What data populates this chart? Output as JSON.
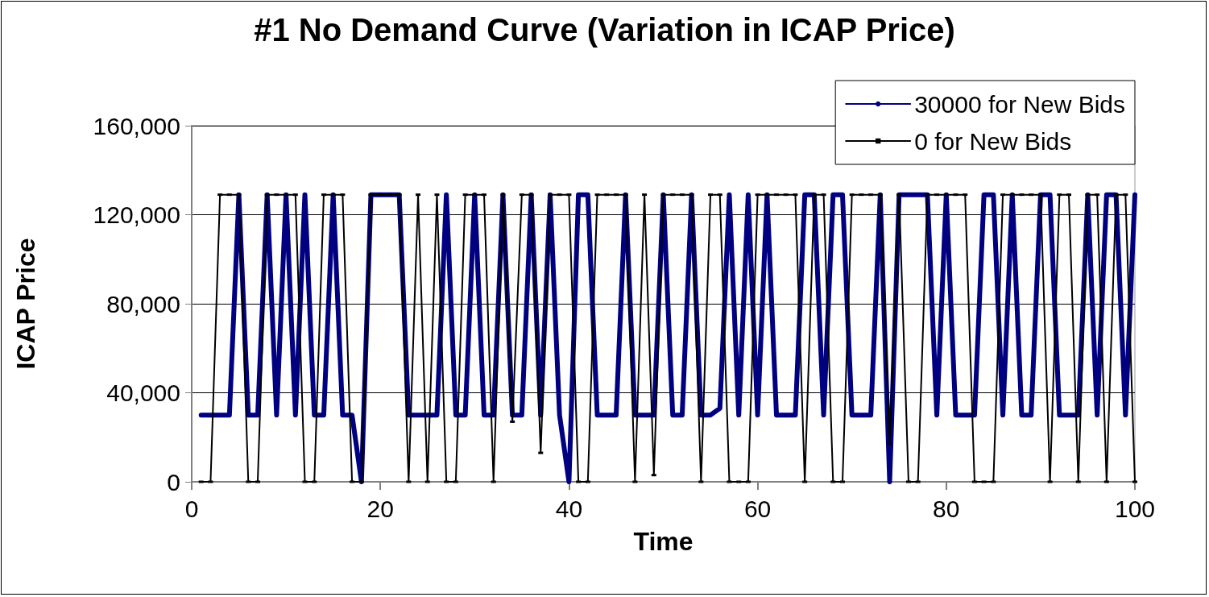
{
  "chart_data": {
    "type": "line",
    "title": "#1 No Demand Curve (Variation in ICAP Price)",
    "xlabel": "Time",
    "ylabel": "ICAP Price",
    "x": [
      1,
      2,
      3,
      4,
      5,
      6,
      7,
      8,
      9,
      10,
      11,
      12,
      13,
      14,
      15,
      16,
      17,
      18,
      19,
      20,
      21,
      22,
      23,
      24,
      25,
      26,
      27,
      28,
      29,
      30,
      31,
      32,
      33,
      34,
      35,
      36,
      37,
      38,
      39,
      40,
      41,
      42,
      43,
      44,
      45,
      46,
      47,
      48,
      49,
      50,
      51,
      52,
      53,
      54,
      55,
      56,
      57,
      58,
      59,
      60,
      61,
      62,
      63,
      64,
      65,
      66,
      67,
      68,
      69,
      70,
      71,
      72,
      73,
      74,
      75,
      76,
      77,
      78,
      79,
      80,
      81,
      82,
      83,
      84,
      85,
      86,
      87,
      88,
      89,
      90,
      91,
      92,
      93,
      94,
      95,
      96,
      97,
      98,
      99,
      100
    ],
    "series": [
      {
        "name": "30000 for New Bids",
        "color": "#000080",
        "marker": "none",
        "values": [
          30000,
          30000,
          30000,
          30000,
          129000,
          30000,
          30000,
          129000,
          30000,
          129000,
          30000,
          129000,
          30000,
          30000,
          129000,
          30000,
          30000,
          0,
          129000,
          129000,
          129000,
          129000,
          30000,
          30000,
          30000,
          30000,
          129000,
          30000,
          30000,
          129000,
          30000,
          30000,
          129000,
          30000,
          30000,
          129000,
          30000,
          129000,
          30000,
          0,
          129000,
          129000,
          30000,
          30000,
          30000,
          129000,
          30000,
          30000,
          30000,
          129000,
          30000,
          30000,
          129000,
          30000,
          30000,
          33000,
          129000,
          30000,
          129000,
          30000,
          129000,
          30000,
          30000,
          30000,
          129000,
          129000,
          30000,
          129000,
          129000,
          30000,
          30000,
          30000,
          129000,
          0,
          129000,
          129000,
          129000,
          129000,
          30000,
          129000,
          30000,
          30000,
          30000,
          129000,
          129000,
          30000,
          129000,
          30000,
          30000,
          129000,
          129000,
          30000,
          30000,
          30000,
          129000,
          30000,
          129000,
          129000,
          30000,
          129000
        ]
      },
      {
        "name": "0 for New Bids",
        "color": "#000000",
        "marker": "square",
        "values": [
          0,
          0,
          129000,
          129000,
          129000,
          0,
          0,
          129000,
          129000,
          129000,
          129000,
          0,
          0,
          129000,
          129000,
          129000,
          0,
          0,
          129000,
          129000,
          129000,
          129000,
          0,
          129000,
          0,
          129000,
          0,
          0,
          129000,
          129000,
          129000,
          0,
          129000,
          27000,
          129000,
          129000,
          13000,
          129000,
          129000,
          129000,
          0,
          0,
          129000,
          129000,
          129000,
          129000,
          0,
          129000,
          3000,
          129000,
          129000,
          129000,
          129000,
          0,
          129000,
          129000,
          0,
          0,
          0,
          129000,
          129000,
          129000,
          129000,
          129000,
          0,
          129000,
          129000,
          0,
          0,
          129000,
          129000,
          129000,
          129000,
          17000,
          129000,
          0,
          0,
          129000,
          129000,
          129000,
          129000,
          129000,
          0,
          0,
          0,
          129000,
          129000,
          129000,
          129000,
          129000,
          0,
          129000,
          129000,
          0,
          129000,
          129000,
          0,
          129000,
          129000,
          0
        ]
      }
    ],
    "xlim": [
      0,
      100
    ],
    "xticks": [
      0,
      20,
      40,
      60,
      80,
      100
    ],
    "ylim": [
      0,
      160000
    ],
    "yticks": [
      0,
      {
        "value": 40000,
        "label": "40,000"
      },
      {
        "value": 80000,
        "label": "80,000"
      },
      {
        "value": 120000,
        "label": "120,000"
      },
      {
        "value": 160000,
        "label": "160,000"
      }
    ],
    "grid": "y",
    "legend": "top right"
  }
}
